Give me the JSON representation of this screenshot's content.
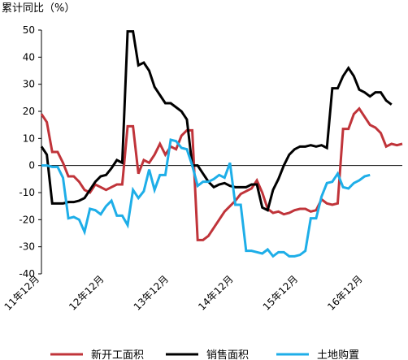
{
  "chart_data": {
    "type": "line",
    "title": "累计同比（%）",
    "xlabel": "",
    "ylabel": "",
    "ylim": [
      -40,
      50
    ],
    "yticks": [
      50,
      40,
      30,
      20,
      10,
      0,
      -10,
      -20,
      -30,
      -40
    ],
    "x_tick_labels": [
      "11年12月",
      "12年12月",
      "13年12月",
      "14年12月",
      "15年12月",
      "16年12月"
    ],
    "x_tick_index": [
      0,
      12,
      24,
      36,
      48,
      60
    ],
    "grid": false,
    "legend_position": "bottom",
    "series": [
      {
        "name": "新开工面积",
        "color": "#c0343a",
        "values": [
          19,
          16,
          5,
          5,
          1,
          -4,
          -4,
          -6,
          -9,
          -10,
          -7,
          -8,
          -9,
          -8,
          -7,
          -7,
          14.5,
          14.5,
          -3,
          2,
          1,
          4,
          8,
          4,
          7,
          6,
          11,
          13,
          13,
          -27.5,
          -27.5,
          -26,
          -23,
          -20,
          -17,
          -15,
          -13,
          -10.5,
          -9.5,
          -8.5,
          -5.5,
          -10,
          -16,
          -17.5,
          -17,
          -18,
          -17.5,
          -16.5,
          -16,
          -16,
          -17,
          -16.5,
          -12.5,
          -14,
          -14.5,
          -14,
          13.5,
          13.5,
          19,
          21,
          18,
          15,
          14,
          12,
          7,
          8,
          7.5,
          8
        ]
      },
      {
        "name": "销售面积",
        "color": "#000000",
        "values": [
          7,
          4,
          -14,
          -14,
          -14,
          -13.5,
          -13.5,
          -13,
          -12,
          -9,
          -6,
          -4,
          -3.5,
          -1,
          2,
          1,
          49.5,
          49.5,
          37,
          38,
          35,
          29,
          26,
          23,
          23,
          21.5,
          20,
          17,
          0,
          0,
          -3,
          -6,
          -8,
          -7,
          -6.5,
          -7.5,
          -8,
          -8,
          -8,
          -7,
          -7,
          -15.5,
          -16.5,
          -9,
          -5,
          0,
          4,
          6,
          7,
          7,
          7.5,
          7,
          7.5,
          6.5,
          28.5,
          28.5,
          33,
          36,
          33,
          28,
          27,
          25.5,
          27,
          27,
          24,
          22.5
        ]
      },
      {
        "name": "土地购置",
        "color": "#1eaee8",
        "values": [
          0,
          0,
          -0.5,
          -0.5,
          -4.5,
          -19.5,
          -19,
          -20,
          -24.5,
          -16,
          -16.5,
          -18,
          -15,
          -13,
          -18.5,
          -18.5,
          -22,
          -9,
          -12,
          -9.5,
          -1.5,
          -9,
          -3.5,
          -3.5,
          9.5,
          9,
          6.5,
          6,
          0,
          -7.5,
          -6,
          -6,
          -5,
          -3.5,
          -4.5,
          1,
          -14.5,
          -14.5,
          -31.5,
          -31.5,
          -32,
          -32.5,
          -31,
          -33.5,
          -32,
          -32,
          -33.5,
          -33.5,
          -33,
          -31.5,
          -19.5,
          -19.5,
          -11.5,
          -6.5,
          -6,
          -3,
          -8,
          -8.5,
          -6.5,
          -5.5,
          -4,
          -3.5
        ]
      }
    ]
  }
}
